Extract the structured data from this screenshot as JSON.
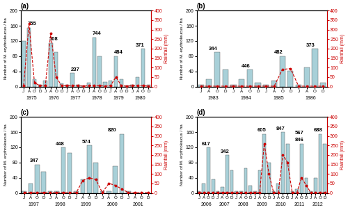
{
  "chart_data": [
    {
      "type": "bar",
      "title": "(a)",
      "y_label": "Number of M. erythroleucus / ha",
      "y2_label": "Rainfall (mm)",
      "categories": [
        "J",
        "A",
        "O",
        "D",
        "J",
        "A",
        "O",
        "D",
        "J",
        "A",
        "O",
        "D",
        "J",
        "A",
        "O",
        "D",
        "J",
        "A",
        "O",
        "D",
        "J",
        "A",
        "O",
        "D"
      ],
      "groups": [
        "1975",
        "1976",
        "1977",
        "1978",
        "1979",
        "1980"
      ],
      "series": [
        {
          "type": "bar",
          "color": "#a8d0d8",
          "values": [
            120,
            155,
            20,
            5,
            15,
            115,
            90,
            8,
            5,
            35,
            5,
            2,
            10,
            130,
            80,
            12,
            15,
            80,
            20,
            2,
            5,
            25,
            100,
            5
          ]
        },
        {
          "type": "line",
          "axis": "y2",
          "color": "#cc0000",
          "line_style": "dashed",
          "marker": "o",
          "values": [
            5,
            330,
            20,
            5,
            5,
            280,
            50,
            5,
            5,
            5,
            5,
            2,
            5,
            5,
            5,
            2,
            5,
            50,
            5,
            2,
            5,
            5,
            5,
            2
          ]
        }
      ],
      "annotations": [
        {
          "group": "1975",
          "text": "755"
        },
        {
          "group": "1976",
          "text": "508"
        },
        {
          "group": "1977",
          "text": "237"
        },
        {
          "group": "1978",
          "text": "744"
        },
        {
          "group": "1979",
          "text": "484"
        },
        {
          "group": "1980",
          "text": "371"
        }
      ],
      "ylim": [
        0,
        200
      ],
      "yticks": [
        0,
        40,
        80,
        120,
        160,
        200
      ],
      "y2lim": [
        0,
        400
      ],
      "y2ticks": [
        0,
        50,
        100,
        150,
        200,
        250,
        300,
        350,
        400
      ]
    },
    {
      "type": "bar",
      "title": "(b)",
      "y_label": "Number of M. erythroleucus / ha",
      "y2_label": "Rainfall (mm)",
      "categories": [
        "J",
        "A",
        "O",
        "D",
        "J",
        "A",
        "O",
        "D",
        "J",
        "A",
        "O",
        "D",
        "J",
        "A",
        "O",
        "D"
      ],
      "groups": [
        "1983",
        "1984",
        "1985",
        "1986"
      ],
      "series": [
        {
          "type": "bar",
          "color": "#a8d0d8",
          "values": [
            5,
            20,
            90,
            45,
            5,
            20,
            45,
            10,
            5,
            15,
            80,
            42,
            5,
            50,
            100,
            10
          ]
        },
        {
          "type": "line",
          "axis": "y2",
          "color": "#cc0000",
          "line_style": "dashed",
          "marker": "o",
          "values": [
            2,
            2,
            2,
            2,
            2,
            2,
            2,
            2,
            2,
            2,
            90,
            95,
            2,
            2,
            2,
            2
          ]
        }
      ],
      "annotations": [
        {
          "group": "1983",
          "text": "344"
        },
        {
          "group": "1984",
          "text": "446"
        },
        {
          "group": "1985",
          "text": "482"
        },
        {
          "group": "1986",
          "text": "373"
        }
      ],
      "ylim": [
        0,
        200
      ],
      "yticks": [
        0,
        40,
        80,
        120,
        160,
        200
      ],
      "y2lim": [
        0,
        400
      ],
      "y2ticks": [
        0,
        50,
        100,
        150,
        200,
        250,
        300,
        350,
        400
      ]
    },
    {
      "type": "bar",
      "title": "(c)",
      "y_label": "Number of M. erythroleucus / ha",
      "y2_label": "Rainfall (mm)",
      "categories": [
        "J",
        "A",
        "O",
        "D",
        "J",
        "A",
        "O",
        "D",
        "J",
        "A",
        "O",
        "D",
        "J",
        "A",
        "O",
        "D",
        "J",
        "A",
        "O",
        "D"
      ],
      "groups": [
        "1997",
        "1998",
        "1999",
        "2000",
        "2001"
      ],
      "series": [
        {
          "type": "bar",
          "color": "#a8d0d8",
          "values": [
            5,
            25,
            75,
            55,
            5,
            5,
            120,
            105,
            5,
            35,
            125,
            80,
            5,
            5,
            70,
            155,
            5,
            0,
            0,
            0
          ]
        },
        {
          "type": "line",
          "axis": "y2",
          "color": "#cc0000",
          "line_style": "dashed",
          "marker": "o",
          "values": [
            2,
            2,
            2,
            2,
            2,
            2,
            2,
            2,
            2,
            65,
            80,
            70,
            2,
            50,
            40,
            20,
            2,
            2,
            2,
            2
          ]
        }
      ],
      "annotations": [
        {
          "group": "1997",
          "text": "347"
        },
        {
          "group": "1998",
          "text": "448"
        },
        {
          "group": "1999",
          "text": "574"
        },
        {
          "group": "2000",
          "text": "820"
        }
      ],
      "ylim": [
        0,
        200
      ],
      "yticks": [
        0,
        40,
        80,
        120,
        160,
        200
      ],
      "y2lim": [
        0,
        400
      ],
      "y2ticks": [
        0,
        50,
        100,
        150,
        200,
        250,
        300,
        350,
        400
      ]
    },
    {
      "type": "bar",
      "title": "(d)",
      "y_label": "Number of M. erythroleucus / ha",
      "y2_label": "Rainfall (mm)",
      "categories": [
        "J",
        "A",
        "O",
        "D",
        "J",
        "A",
        "O",
        "D",
        "J",
        "A",
        "O",
        "D",
        "J",
        "A",
        "O",
        "D",
        "J",
        "A",
        "O",
        "D",
        "J",
        "A",
        "O",
        "D",
        "J",
        "A",
        "O",
        "D"
      ],
      "groups": [
        "2006",
        "2007",
        "2008",
        "2009",
        "2010",
        "2011",
        "2012"
      ],
      "series": [
        {
          "type": "bar",
          "color": "#a8d0d8",
          "values": [
            5,
            25,
            120,
            35,
            5,
            15,
            100,
            60,
            5,
            5,
            65,
            20,
            5,
            60,
            155,
            80,
            5,
            25,
            160,
            130,
            5,
            10,
            130,
            40,
            5,
            40,
            155,
            130
          ]
        },
        {
          "type": "line",
          "axis": "y2",
          "color": "#cc0000",
          "line_style": "dashed",
          "marker": "o",
          "values": [
            2,
            2,
            2,
            2,
            2,
            2,
            2,
            2,
            2,
            2,
            2,
            2,
            2,
            2,
            260,
            100,
            2,
            2,
            200,
            160,
            2,
            2,
            80,
            40,
            2,
            2,
            2,
            2
          ]
        }
      ],
      "annotations": [
        {
          "group": "2006",
          "text": "617"
        },
        {
          "group": "2007",
          "text": "342"
        },
        {
          "group": "2009",
          "text": "605"
        },
        {
          "group": "2010",
          "text": "847"
        },
        {
          "group": "2011",
          "text": "846"
        },
        {
          "group": "2011",
          "text": "567"
        },
        {
          "group": "2012",
          "text": "688"
        }
      ],
      "ylim": [
        0,
        200
      ],
      "yticks": [
        0,
        40,
        80,
        120,
        160,
        200
      ],
      "y2lim": [
        0,
        400
      ],
      "y2ticks": [
        0,
        50,
        100,
        150,
        200,
        250,
        300,
        350,
        400
      ]
    }
  ]
}
